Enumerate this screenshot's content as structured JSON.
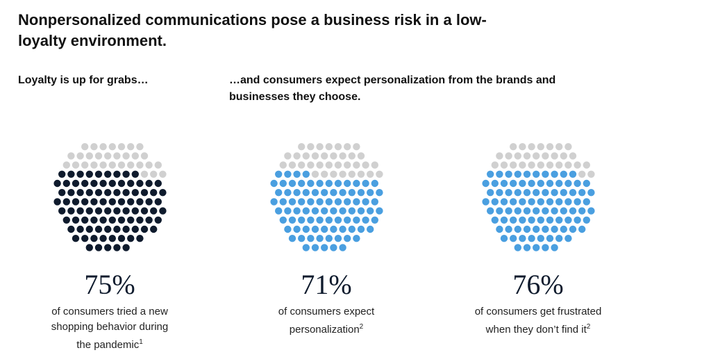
{
  "title": "Nonpersonalized communications pose a business risk in a low-loyalty environment.",
  "subheads": {
    "left": "Loyalty is up for grabs…",
    "right": "…and consumers expect personalization from the brands and businesses they choose."
  },
  "colors": {
    "inactive": "#d0d0d0",
    "navy": "#0f1b2d",
    "blue": "#4a9fe0"
  },
  "chart_data": [
    {
      "type": "dot-proportion",
      "value": 75,
      "label": "75%",
      "line1": "of consumers tried a new",
      "line2": "shopping behavior during",
      "line3": "the pandemic",
      "footnote": "1",
      "color": "#0f1b2d"
    },
    {
      "type": "dot-proportion",
      "value": 71,
      "label": "71%",
      "line1": "of consumers expect",
      "line2": "personalization",
      "line3": "",
      "footnote": "2",
      "color": "#4a9fe0"
    },
    {
      "type": "dot-proportion",
      "value": 76,
      "label": "76%",
      "line1": "of consumers get frustrated",
      "line2": "when they don’t find it",
      "line3": "",
      "footnote": "2",
      "color": "#4a9fe0"
    }
  ]
}
